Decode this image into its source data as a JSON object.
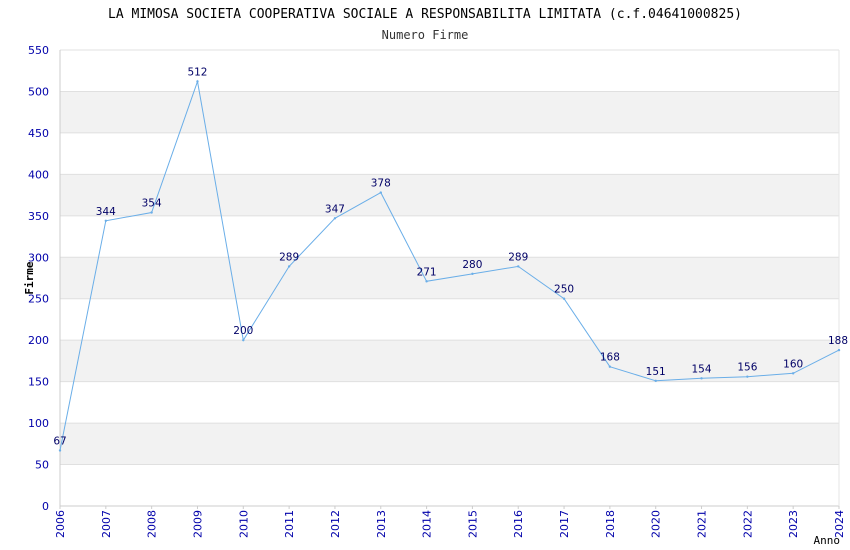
{
  "chart_data": {
    "type": "line",
    "title": "LA MIMOSA SOCIETA COOPERATIVA SOCIALE A RESPONSABILITA LIMITATA (c.f.04641000825)",
    "subtitle": "Numero Firme",
    "xlabel": "Anno",
    "ylabel": "Firme",
    "categories": [
      "2006",
      "2007",
      "2008",
      "2009",
      "2010",
      "2011",
      "2012",
      "2013",
      "2014",
      "2015",
      "2016",
      "2017",
      "2018",
      "2020",
      "2021",
      "2022",
      "2023",
      "2024"
    ],
    "series": [
      {
        "values": [
          67,
          344,
          354,
          512,
          200,
          289,
          347,
          378,
          271,
          280,
          289,
          250,
          168,
          151,
          154,
          156,
          160,
          188
        ]
      }
    ],
    "data_labels": [
      "67",
      "344",
      "354",
      "512",
      "200",
      "289",
      "347",
      "378",
      "271",
      "280",
      "289",
      "250",
      "168",
      "151",
      "154",
      "156",
      "160",
      "188"
    ],
    "yticks": [
      "0",
      "50",
      "100",
      "150",
      "200",
      "250",
      "300",
      "350",
      "400",
      "450",
      "500",
      "550"
    ],
    "ylim": [
      0,
      550
    ],
    "ystep": 50,
    "grid": "horizontal bands",
    "legend": "none",
    "colors": {
      "line": "#6aaee8",
      "band": "#f2f2f2",
      "tick_text": "#0000aa",
      "label_text": "#000066"
    }
  }
}
